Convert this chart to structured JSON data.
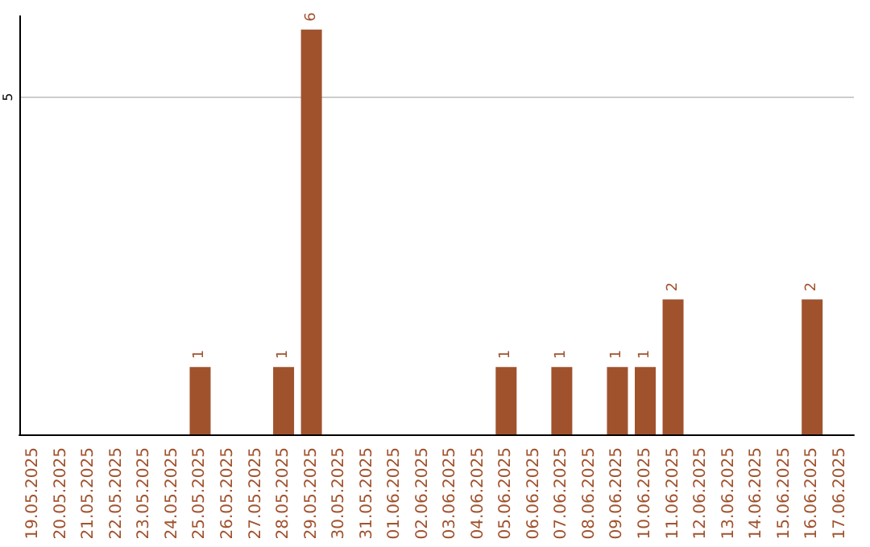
{
  "chart_data": {
    "type": "bar",
    "categories": [
      "19.05.2025",
      "20.05.2025",
      "21.05.2025",
      "22.05.2025",
      "23.05.2025",
      "24.05.2025",
      "25.05.2025",
      "26.05.2025",
      "27.05.2025",
      "28.05.2025",
      "29.05.2025",
      "30.05.2025",
      "31.05.2025",
      "01.06.2025",
      "02.06.2025",
      "03.06.2025",
      "04.06.2025",
      "05.06.2025",
      "06.06.2025",
      "07.06.2025",
      "08.06.2025",
      "09.06.2025",
      "10.06.2025",
      "11.06.2025",
      "12.06.2025",
      "13.06.2025",
      "14.06.2025",
      "15.06.2025",
      "16.06.2025",
      "17.06.2025"
    ],
    "values": [
      0,
      0,
      0,
      0,
      0,
      0,
      1,
      0,
      0,
      1,
      6,
      0,
      0,
      0,
      0,
      0,
      0,
      1,
      0,
      1,
      0,
      1,
      1,
      2,
      0,
      0,
      0,
      0,
      2,
      0
    ],
    "color": "#a0522d",
    "value_labels": [
      null,
      null,
      null,
      null,
      null,
      null,
      "1",
      null,
      null,
      "1",
      "6",
      null,
      null,
      null,
      null,
      null,
      null,
      "1",
      null,
      "1",
      null,
      "1",
      "1",
      "2",
      null,
      null,
      null,
      null,
      "2",
      null
    ],
    "ylim": [
      0,
      6.2
    ],
    "yticks": [
      5
    ],
    "grid": "y"
  }
}
